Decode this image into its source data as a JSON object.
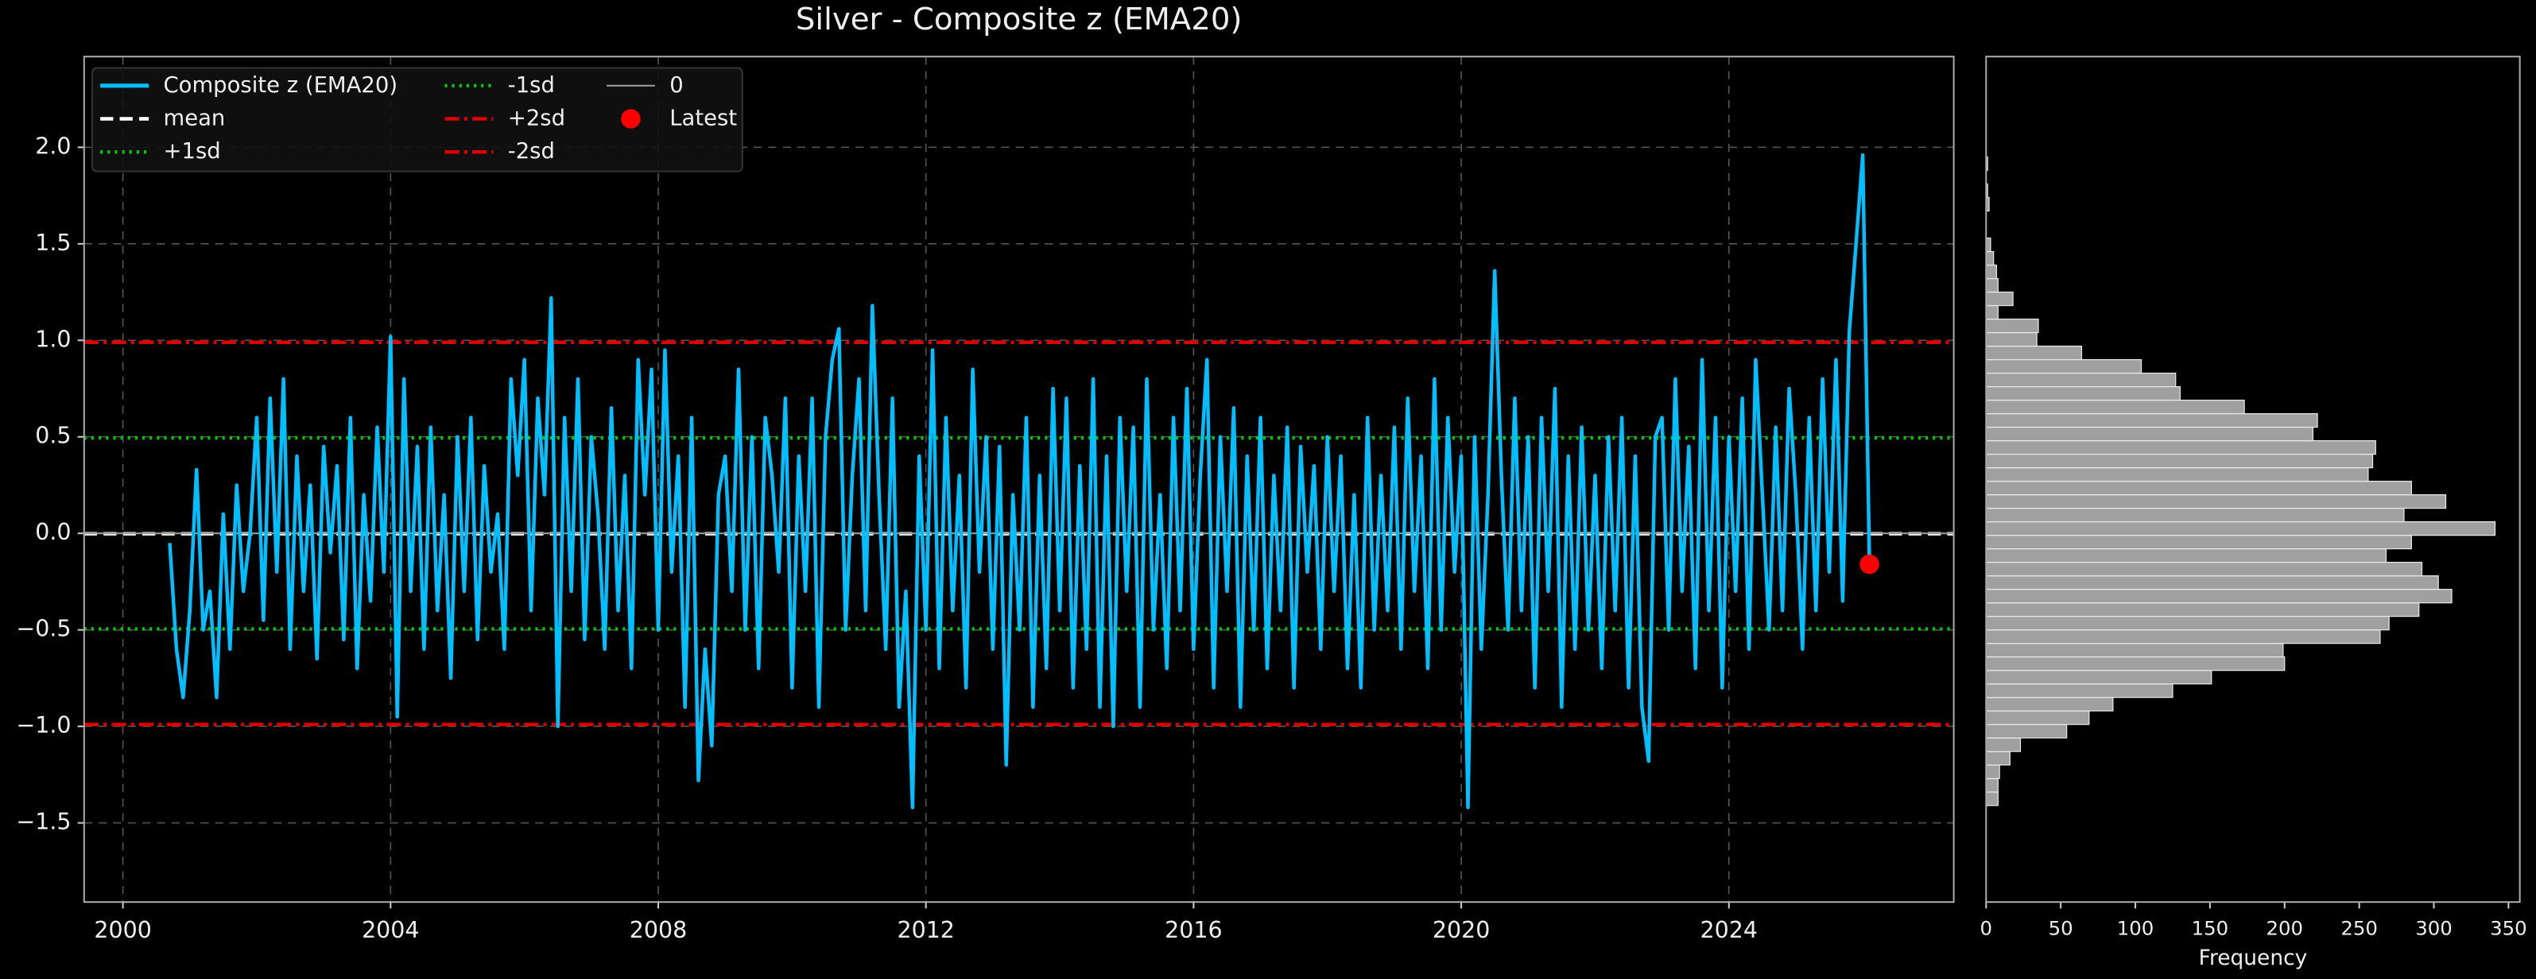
{
  "chart_data": [
    {
      "type": "line",
      "title": "Silver - Composite z (EMA20)",
      "x": [
        2000.7,
        2000.8,
        2000.9,
        2001,
        2001.1,
        2001.2,
        2001.3,
        2001.4,
        2001.5,
        2001.6,
        2001.7,
        2001.8,
        2001.9,
        2002,
        2002.1,
        2002.2,
        2002.3,
        2002.4,
        2002.5,
        2002.6,
        2002.7,
        2002.8,
        2002.9,
        2003,
        2003.1,
        2003.2,
        2003.3,
        2003.4,
        2003.5,
        2003.6,
        2003.7,
        2003.8,
        2003.9,
        2004,
        2004.1,
        2004.2,
        2004.3,
        2004.4,
        2004.5,
        2004.6,
        2004.7,
        2004.8,
        2004.9,
        2005,
        2005.1,
        2005.2,
        2005.3,
        2005.4,
        2005.5,
        2005.6,
        2005.7,
        2005.8,
        2005.9,
        2006,
        2006.1,
        2006.2,
        2006.3,
        2006.4,
        2006.5,
        2006.6,
        2006.7,
        2006.8,
        2006.9,
        2007,
        2007.1,
        2007.2,
        2007.3,
        2007.4,
        2007.5,
        2007.6,
        2007.7,
        2007.8,
        2007.9,
        2008,
        2008.1,
        2008.2,
        2008.3,
        2008.4,
        2008.5,
        2008.6,
        2008.7,
        2008.8,
        2008.9,
        2009,
        2009.1,
        2009.2,
        2009.3,
        2009.4,
        2009.5,
        2009.6,
        2009.7,
        2009.8,
        2009.9,
        2010,
        2010.1,
        2010.2,
        2010.3,
        2010.4,
        2010.5,
        2010.6,
        2010.7,
        2010.8,
        2010.9,
        2011,
        2011.1,
        2011.2,
        2011.3,
        2011.4,
        2011.5,
        2011.6,
        2011.7,
        2011.8,
        2011.9,
        2012,
        2012.1,
        2012.2,
        2012.3,
        2012.4,
        2012.5,
        2012.6,
        2012.7,
        2012.8,
        2012.9,
        2013,
        2013.1,
        2013.2,
        2013.3,
        2013.4,
        2013.5,
        2013.6,
        2013.7,
        2013.8,
        2013.9,
        2014,
        2014.1,
        2014.2,
        2014.3,
        2014.4,
        2014.5,
        2014.6,
        2014.7,
        2014.8,
        2014.9,
        2015,
        2015.1,
        2015.2,
        2015.3,
        2015.4,
        2015.5,
        2015.6,
        2015.7,
        2015.8,
        2015.9,
        2016,
        2016.1,
        2016.2,
        2016.3,
        2016.4,
        2016.5,
        2016.6,
        2016.7,
        2016.8,
        2016.9,
        2017,
        2017.1,
        2017.2,
        2017.3,
        2017.4,
        2017.5,
        2017.6,
        2017.7,
        2017.8,
        2017.9,
        2018,
        2018.1,
        2018.2,
        2018.3,
        2018.4,
        2018.5,
        2018.6,
        2018.7,
        2018.8,
        2018.9,
        2019,
        2019.1,
        2019.2,
        2019.3,
        2019.4,
        2019.5,
        2019.6,
        2019.7,
        2019.8,
        2019.9,
        2020,
        2020.1,
        2020.2,
        2020.3,
        2020.4,
        2020.5,
        2020.6,
        2020.7,
        2020.8,
        2020.9,
        2021,
        2021.1,
        2021.2,
        2021.3,
        2021.4,
        2021.5,
        2021.6,
        2021.7,
        2021.8,
        2021.9,
        2022,
        2022.1,
        2022.2,
        2022.3,
        2022.4,
        2022.5,
        2022.6,
        2022.7,
        2022.8,
        2022.9,
        2023,
        2023.1,
        2023.2,
        2023.3,
        2023.4,
        2023.5,
        2023.6,
        2023.7,
        2023.8,
        2023.9,
        2024,
        2024.1,
        2024.2,
        2024.3,
        2024.4,
        2024.5,
        2024.6,
        2024.7,
        2024.8,
        2024.9,
        2025,
        2025.1,
        2025.2,
        2025.3,
        2025.4,
        2025.5,
        2025.6,
        2025.7,
        2025.8,
        2025.9,
        2026,
        2026.1
      ],
      "series": [
        {
          "name": "Composite z (EMA20)",
          "color": "#00bfff",
          "values": [
            -0.05,
            -0.6,
            -0.85,
            -0.4,
            0.33,
            -0.5,
            -0.3,
            -0.85,
            0.1,
            -0.6,
            0.25,
            -0.3,
            0.0,
            0.6,
            -0.45,
            0.7,
            -0.2,
            0.8,
            -0.6,
            0.4,
            -0.3,
            0.25,
            -0.65,
            0.45,
            -0.1,
            0.35,
            -0.55,
            0.6,
            -0.7,
            0.2,
            -0.35,
            0.55,
            -0.2,
            1.02,
            -0.95,
            0.8,
            -0.3,
            0.45,
            -0.6,
            0.55,
            -0.4,
            0.2,
            -0.75,
            0.5,
            -0.3,
            0.6,
            -0.55,
            0.35,
            -0.2,
            0.1,
            -0.6,
            0.8,
            0.3,
            0.9,
            -0.4,
            0.7,
            0.2,
            1.22,
            -1.0,
            0.6,
            -0.3,
            0.8,
            -0.55,
            0.5,
            0.1,
            -0.6,
            0.65,
            -0.4,
            0.3,
            -0.7,
            0.9,
            0.2,
            0.85,
            -0.5,
            0.95,
            -0.2,
            0.4,
            -0.9,
            0.6,
            -1.28,
            -0.6,
            -1.1,
            0.2,
            0.4,
            -0.3,
            0.85,
            -0.5,
            0.5,
            -0.7,
            0.6,
            0.3,
            -0.2,
            0.7,
            -0.8,
            0.4,
            -0.3,
            0.7,
            -0.9,
            0.5,
            0.9,
            1.06,
            -0.5,
            0.3,
            0.8,
            -0.4,
            1.18,
            0.2,
            -0.6,
            0.7,
            -0.9,
            -0.3,
            -1.42,
            0.4,
            -0.5,
            0.95,
            -0.7,
            0.6,
            -0.4,
            0.3,
            -0.8,
            0.85,
            -0.2,
            0.5,
            -0.6,
            0.45,
            -1.2,
            0.2,
            -0.5,
            0.6,
            -0.9,
            0.3,
            -0.7,
            0.75,
            -0.4,
            0.7,
            -0.8,
            0.35,
            -0.6,
            0.8,
            -0.9,
            0.4,
            -1.0,
            0.6,
            -0.3,
            0.55,
            -0.9,
            0.8,
            -0.5,
            0.2,
            -0.7,
            0.6,
            -0.4,
            0.75,
            -0.6,
            0.3,
            0.9,
            -0.8,
            0.5,
            -0.3,
            0.65,
            -0.9,
            0.4,
            -0.5,
            0.6,
            -0.7,
            0.3,
            -0.4,
            0.55,
            -0.8,
            0.45,
            -0.2,
            0.35,
            -0.6,
            0.5,
            -0.3,
            0.4,
            -0.7,
            0.2,
            -0.8,
            0.6,
            -0.5,
            0.3,
            -0.4,
            0.55,
            -0.6,
            0.7,
            -0.3,
            0.4,
            -0.7,
            0.8,
            -0.5,
            0.6,
            -0.2,
            0.4,
            -1.42,
            0.5,
            -0.6,
            0.2,
            1.36,
            0.3,
            -0.5,
            0.7,
            -0.4,
            0.5,
            -0.8,
            0.6,
            -0.3,
            0.75,
            -0.9,
            0.4,
            -0.6,
            0.55,
            -0.5,
            0.3,
            -0.7,
            0.5,
            -0.4,
            0.6,
            -0.8,
            0.4,
            -0.9,
            -1.18,
            0.5,
            0.6,
            -0.5,
            0.8,
            -0.3,
            0.45,
            -0.7,
            0.9,
            -0.4,
            0.6,
            -0.8,
            0.5,
            -0.3,
            0.7,
            -0.6,
            0.9,
            0.2,
            -0.5,
            0.55,
            -0.4,
            0.75,
            0.2,
            -0.6,
            0.6,
            -0.4,
            0.8,
            -0.2,
            0.9,
            -0.35,
            1.05,
            1.5,
            1.96,
            -0.16
          ]
        },
        {
          "name": "Latest",
          "color": "#ff0000",
          "x": [
            2026.1
          ],
          "values": [
            -0.16
          ]
        }
      ],
      "reference_lines": [
        {
          "name": "mean",
          "value": -0.002,
          "color": "#ffffff",
          "style": "dashed"
        },
        {
          "name": "+1sd",
          "value": 0.495,
          "color": "#00cc00",
          "style": "dotted"
        },
        {
          "name": "-1sd",
          "value": -0.495,
          "color": "#00cc00",
          "style": "dotted"
        },
        {
          "name": "+2sd",
          "value": 0.99,
          "color": "#dd0000",
          "style": "dashdot"
        },
        {
          "name": "-2sd",
          "value": -0.99,
          "color": "#dd0000",
          "style": "dashdot"
        },
        {
          "name": "0",
          "value": 0,
          "color": "#999999",
          "style": "solid"
        }
      ],
      "xlim": [
        1999.42,
        2027.36
      ],
      "ylim": [
        -1.91,
        2.47
      ],
      "xticks": [
        2000,
        2004,
        2008,
        2012,
        2016,
        2020,
        2024
      ],
      "yticks": [
        {
          "value": -1.5,
          "label": "−1.5"
        },
        {
          "value": -1.0,
          "label": "−1.0"
        },
        {
          "value": -0.5,
          "label": "−0.5"
        },
        {
          "value": 0.0,
          "label": "0.0"
        },
        {
          "value": 0.5,
          "label": "0.5"
        },
        {
          "value": 1.0,
          "label": "1.0"
        },
        {
          "value": 1.5,
          "label": "1.5"
        },
        {
          "value": 2.0,
          "label": "2.0"
        }
      ],
      "grid": true,
      "legend": "upper left"
    },
    {
      "type": "histogram",
      "orientation": "horizontal",
      "color": "#a0a0a0",
      "xlabel": "Frequency",
      "bins": [
        -1.41,
        -1.34,
        -1.27,
        -1.2,
        -1.13,
        -1.06,
        -0.99,
        -0.92,
        -0.85,
        -0.78,
        -0.71,
        -0.64,
        -0.57,
        -0.5,
        -0.43,
        -0.36,
        -0.29,
        -0.22,
        -0.15,
        -0.08,
        -0.01,
        0.06,
        0.13,
        0.2,
        0.27,
        0.34,
        0.41,
        0.48,
        0.55,
        0.62,
        0.69,
        0.76,
        0.83,
        0.9,
        0.97,
        1.04,
        1.11,
        1.18,
        1.25,
        1.32,
        1.39,
        1.46,
        1.53,
        1.6,
        1.67,
        1.74,
        1.81,
        1.88,
        1.95,
        2.02,
        2.09
      ],
      "counts": [
        8,
        8,
        9,
        16,
        23,
        54,
        69,
        85,
        125,
        151,
        200,
        199,
        264,
        270,
        290,
        312,
        303,
        292,
        268,
        285,
        341,
        280,
        308,
        285,
        256,
        259,
        261,
        219,
        222,
        173,
        130,
        127,
        104,
        64,
        34,
        35,
        8,
        18,
        8,
        7,
        5,
        3,
        0,
        0,
        2,
        1,
        0,
        1,
        0,
        0
      ],
      "xlim": [
        0,
        357.6
      ],
      "xticks": [
        0,
        50,
        100,
        150,
        200,
        250,
        300,
        350
      ],
      "ylim": [
        -1.91,
        2.47
      ]
    }
  ]
}
